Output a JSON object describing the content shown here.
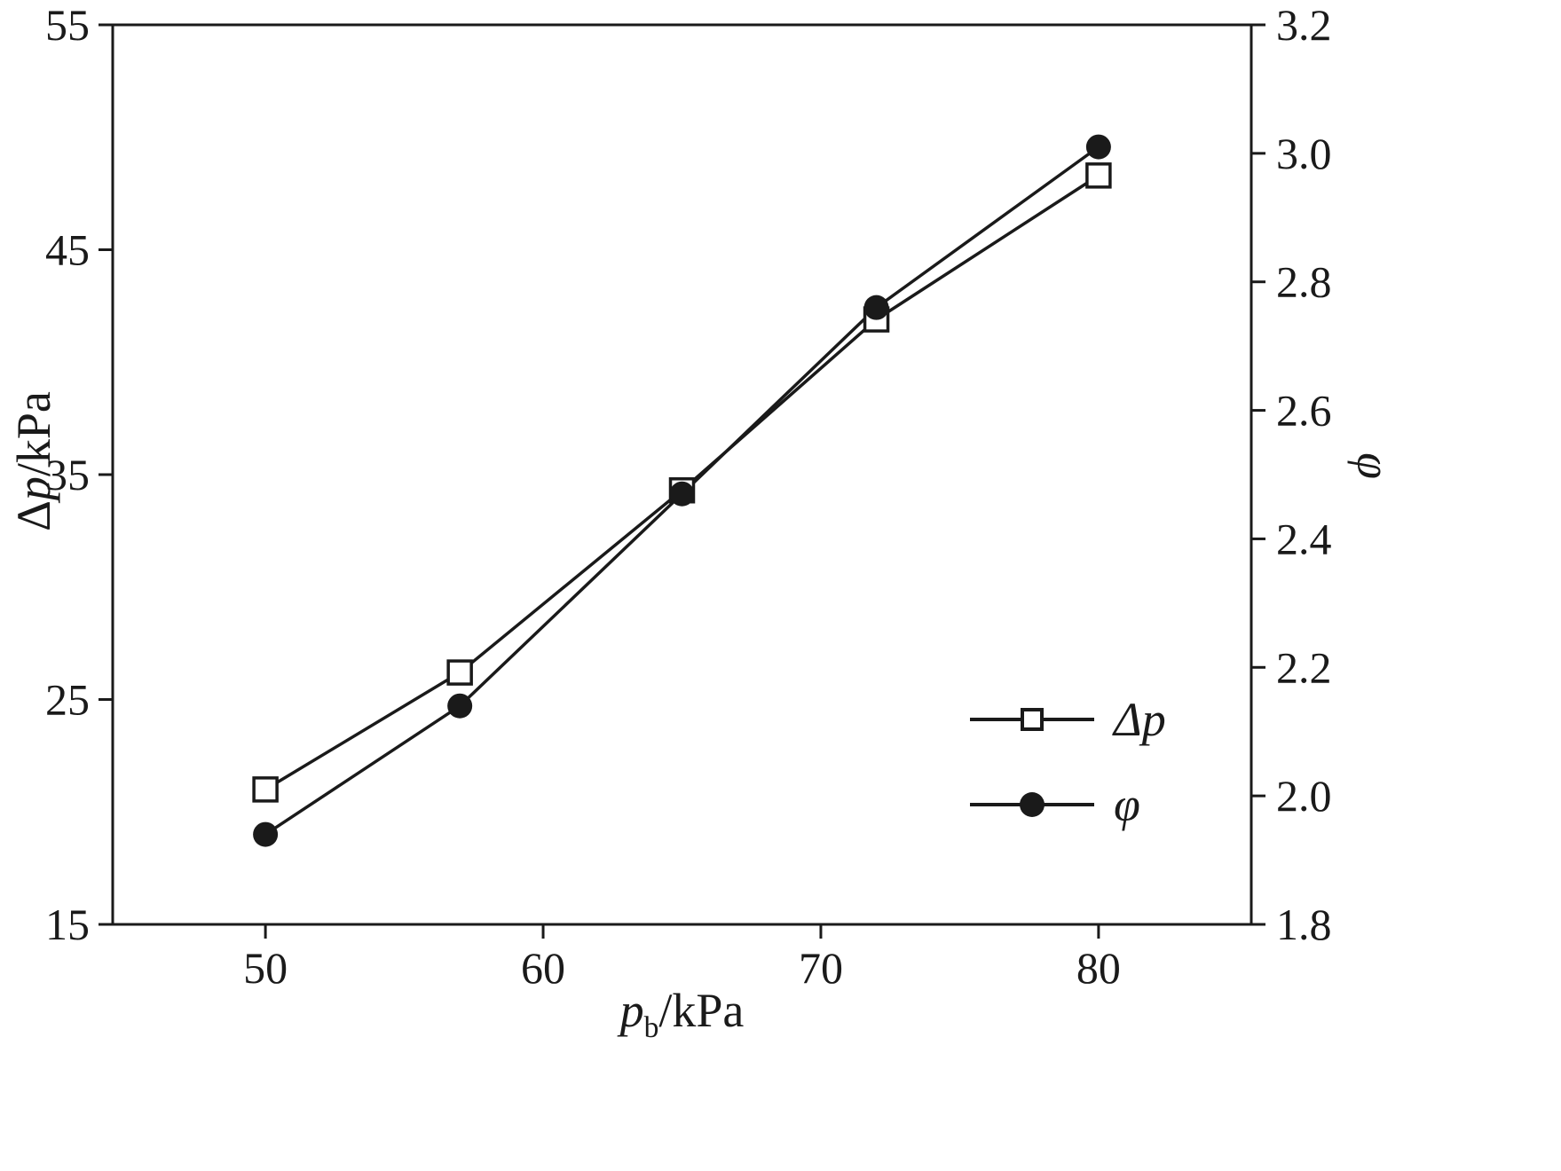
{
  "chart_data": {
    "type": "line",
    "x": [
      50,
      57,
      65,
      72,
      80
    ],
    "series": [
      {
        "name": "Δp",
        "axis": "left",
        "marker": "open-square",
        "values": [
          21.0,
          26.2,
          34.3,
          41.9,
          48.3
        ]
      },
      {
        "name": "φ",
        "axis": "right",
        "marker": "filled-circle",
        "values": [
          1.94,
          2.14,
          2.47,
          2.76,
          3.01
        ]
      }
    ],
    "xlim": [
      44.5,
      85.5
    ],
    "ylim_left": [
      15,
      55
    ],
    "ylim_right": [
      1.8,
      3.2
    ],
    "xticks": {
      "values": [
        50,
        60,
        70,
        80
      ],
      "labels": [
        "50",
        "60",
        "70",
        "80"
      ]
    },
    "yticks_left": {
      "values": [
        15,
        25,
        35,
        45,
        55
      ],
      "labels": [
        "15",
        "25",
        "35",
        "45",
        "55"
      ]
    },
    "yticks_right": {
      "values": [
        1.8,
        2.0,
        2.2,
        2.4,
        2.6,
        2.8,
        3.0,
        3.2
      ],
      "labels": [
        "1.8",
        "2.0",
        "2.2",
        "2.4",
        "2.6",
        "2.8",
        "3.0",
        "3.2"
      ]
    },
    "grid": false,
    "legend_position": "lower-right-inside",
    "line_color": "#1a1a1a",
    "legend": [
      {
        "label": "Δp",
        "marker": "open-square"
      },
      {
        "label": "φ",
        "marker": "filled-circle"
      }
    ]
  },
  "axes": {
    "xlabel": {
      "variable": "p",
      "subscript": "b",
      "unit": "/kPa"
    },
    "ylabel_left": {
      "prefix": "Δ",
      "variable": "p",
      "unit": "/kPa"
    },
    "ylabel_right": "φ"
  }
}
